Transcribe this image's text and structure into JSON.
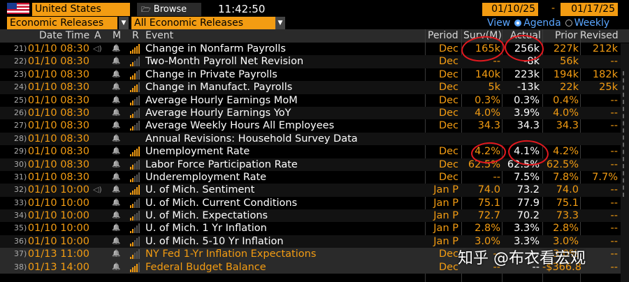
{
  "topbar": {
    "country": "United States",
    "browse": "Browse",
    "time": "11:42:50",
    "date_from": "01/10/25",
    "date_sep": "-",
    "date_to": "01/17/25"
  },
  "filters": {
    "category": "Economic Releases",
    "subcategory": "All Economic Releases"
  },
  "view": {
    "label": "View",
    "agenda": "Agenda",
    "weekly": "Weekly"
  },
  "columns": {
    "datetime": "Date Time",
    "a": "A",
    "m": "M",
    "r": "R",
    "event": "Event",
    "period": "Period",
    "survey": "Surv(M)",
    "actual": "Actual",
    "prior": "Prior",
    "revised": "Revised"
  },
  "rows": [
    {
      "num": "21)",
      "dt": "01/10 08:30",
      "alert": true,
      "rel": 5,
      "event": "Change in Nonfarm Payrolls",
      "period": "Dec",
      "survey": "165k",
      "actual": "256k",
      "prior": "227k",
      "revised": "212k",
      "style": ""
    },
    {
      "num": "22)",
      "dt": "01/10 08:30",
      "alert": false,
      "rel": 2,
      "event": "Two-Month Payroll Net Revision",
      "period": "Dec",
      "survey": "--",
      "actual": "-8k",
      "prior": "56k",
      "revised": "--",
      "style": ""
    },
    {
      "num": "23)",
      "dt": "01/10 08:30",
      "alert": false,
      "rel": 3,
      "event": "Change in Private Payrolls",
      "period": "Dec",
      "survey": "140k",
      "actual": "223k",
      "prior": "194k",
      "revised": "182k",
      "style": ""
    },
    {
      "num": "24)",
      "dt": "01/10 08:30",
      "alert": false,
      "rel": 4,
      "event": "Change in Manufact. Payrolls",
      "period": "Dec",
      "survey": "5k",
      "actual": "-13k",
      "prior": "22k",
      "revised": "25k",
      "style": ""
    },
    {
      "num": "25)",
      "dt": "01/10 08:30",
      "alert": false,
      "rel": 2,
      "event": "Average Hourly Earnings MoM",
      "period": "Dec",
      "survey": "0.3%",
      "actual": "0.3%",
      "prior": "0.4%",
      "revised": "--",
      "style": ""
    },
    {
      "num": "26)",
      "dt": "01/10 08:30",
      "alert": false,
      "rel": 2,
      "event": "Average Hourly Earnings YoY",
      "period": "Dec",
      "survey": "4.0%",
      "actual": "3.9%",
      "prior": "4.0%",
      "revised": "--",
      "style": ""
    },
    {
      "num": "27)",
      "dt": "01/10 08:30",
      "alert": false,
      "rel": 2,
      "event": "Average Weekly Hours All Employees",
      "period": "Dec",
      "survey": "34.3",
      "actual": "34.3",
      "prior": "34.3",
      "revised": "--",
      "style": ""
    },
    {
      "num": "28)",
      "dt": "01/10 08:30",
      "alert": false,
      "rel": 0,
      "event": "Annual Revisions: Household Survey Data",
      "period": "",
      "survey": "",
      "actual": "",
      "prior": "",
      "revised": "",
      "style": ""
    },
    {
      "num": "29)",
      "dt": "01/10 08:30",
      "alert": false,
      "rel": 5,
      "event": "Unemployment Rate",
      "period": "Dec",
      "survey": "4.2%",
      "actual": "4.1%",
      "prior": "4.2%",
      "revised": "--",
      "style": ""
    },
    {
      "num": "30)",
      "dt": "01/10 08:30",
      "alert": false,
      "rel": 2,
      "event": "Labor Force Participation Rate",
      "period": "Dec",
      "survey": "62.5%",
      "actual": "62.5%",
      "prior": "62.5%",
      "revised": "--",
      "style": ""
    },
    {
      "num": "31)",
      "dt": "01/10 08:30",
      "alert": false,
      "rel": 2,
      "event": "Underemployment Rate",
      "period": "Dec",
      "survey": "--",
      "actual": "7.5%",
      "prior": "7.8%",
      "revised": "7.7%",
      "style": ""
    },
    {
      "num": "32)",
      "dt": "01/10 10:00",
      "alert": true,
      "rel": 5,
      "event": "U. of Mich. Sentiment",
      "period": "Jan P",
      "survey": "74.0",
      "actual": "73.2",
      "prior": "74.0",
      "revised": "--",
      "style": ""
    },
    {
      "num": "33)",
      "dt": "01/10 10:00",
      "alert": false,
      "rel": 2,
      "event": "U. of Mich. Current Conditions",
      "period": "Jan P",
      "survey": "75.1",
      "actual": "77.9",
      "prior": "75.1",
      "revised": "--",
      "style": ""
    },
    {
      "num": "34)",
      "dt": "01/10 10:00",
      "alert": false,
      "rel": 2,
      "event": "U. of Mich. Expectations",
      "period": "Jan P",
      "survey": "72.7",
      "actual": "70.2",
      "prior": "73.3",
      "revised": "--",
      "style": ""
    },
    {
      "num": "35)",
      "dt": "01/10 10:00",
      "alert": false,
      "rel": 2,
      "event": "U. of Mich. 1 Yr Inflation",
      "period": "Jan P",
      "survey": "2.8%",
      "actual": "3.3%",
      "prior": "2.8%",
      "revised": "--",
      "style": ""
    },
    {
      "num": "36)",
      "dt": "01/10 10:00",
      "alert": false,
      "rel": 2,
      "event": "U. of Mich. 5-10 Yr Inflation",
      "period": "Jan P",
      "survey": "3.0%",
      "actual": "3.3%",
      "prior": "3.0%",
      "revised": "--",
      "style": ""
    },
    {
      "num": "37)",
      "dt": "01/13 11:00",
      "alert": false,
      "rel": 2,
      "event": "NY Fed 1-Yr Inflation Expectations",
      "period": "Dec",
      "survey": "--",
      "actual": "--",
      "prior": "3.0%",
      "revised": "--",
      "style": "hl orange"
    },
    {
      "num": "38)",
      "dt": "01/13 14:00",
      "alert": false,
      "rel": 4,
      "event": "Federal Budget Balance",
      "period": "Dec",
      "survey": "--",
      "actual": "--",
      "prior": "-$366.8",
      "revised": "--",
      "style": "hl orange"
    }
  ],
  "watermark": "知乎 @布衣看宏观"
}
